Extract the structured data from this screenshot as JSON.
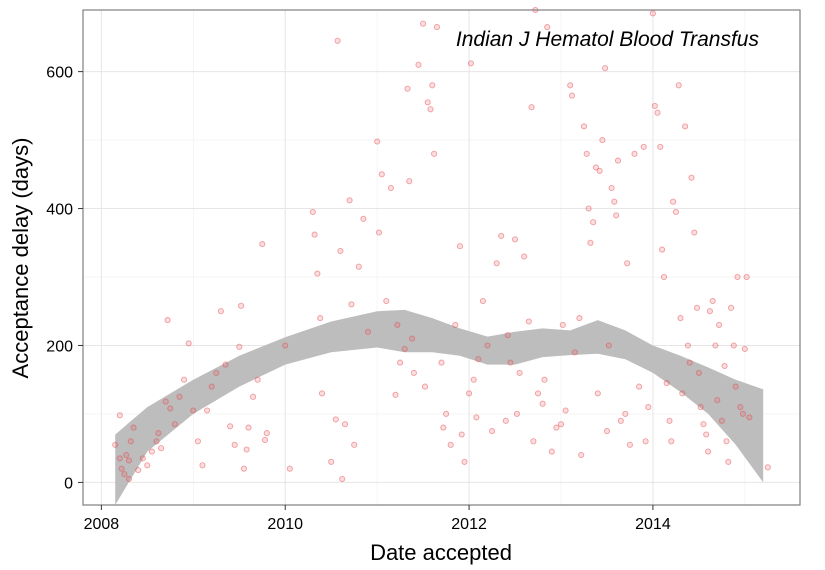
{
  "chart_data": {
    "type": "scatter",
    "title": "",
    "annotation": "Indian J Hematol Blood Transfus",
    "xlabel": "Date accepted",
    "ylabel": "Acceptance delay (days)",
    "xlim": [
      2007.8,
      2015.6
    ],
    "ylim": [
      -33,
      690
    ],
    "x_ticks": [
      2008,
      2010,
      2012,
      2014
    ],
    "x_tick_labels": [
      "2008",
      "2010",
      "2012",
      "2014"
    ],
    "y_ticks": [
      0,
      200,
      400,
      600
    ],
    "y_tick_labels": [
      "0",
      "200",
      "400",
      "600"
    ],
    "grid": true,
    "legend": "none",
    "colors": {
      "point": "#e8474c",
      "band": "#bdbdbd",
      "grid_major": "#e6e6e6",
      "grid_minor": "#f3f3f3",
      "frame": "#7f7f7f"
    },
    "band": {
      "x": [
        2008.15,
        2008.5,
        2009.0,
        2009.5,
        2010.0,
        2010.5,
        2011.0,
        2011.3,
        2011.6,
        2011.9,
        2012.2,
        2012.5,
        2012.8,
        2013.1,
        2013.4,
        2013.7,
        2014.0,
        2014.3,
        2014.6,
        2014.9,
        2015.2
      ],
      "upper": [
        70,
        110,
        150,
        185,
        212,
        235,
        250,
        252,
        240,
        225,
        213,
        220,
        225,
        222,
        237,
        222,
        200,
        185,
        168,
        150,
        136
      ],
      "lower": [
        -33,
        45,
        100,
        140,
        172,
        190,
        197,
        190,
        190,
        185,
        172,
        172,
        183,
        186,
        188,
        180,
        160,
        132,
        100,
        55,
        0
      ]
    },
    "points": [
      [
        2008.15,
        55
      ],
      [
        2008.2,
        98
      ],
      [
        2008.2,
        35
      ],
      [
        2008.22,
        20
      ],
      [
        2008.25,
        12
      ],
      [
        2008.27,
        40
      ],
      [
        2008.3,
        5
      ],
      [
        2008.3,
        32
      ],
      [
        2008.32,
        60
      ],
      [
        2008.35,
        80
      ],
      [
        2008.4,
        18
      ],
      [
        2008.45,
        35
      ],
      [
        2008.5,
        25
      ],
      [
        2008.55,
        45
      ],
      [
        2008.6,
        60
      ],
      [
        2008.62,
        72
      ],
      [
        2008.65,
        50
      ],
      [
        2008.7,
        118
      ],
      [
        2008.72,
        237
      ],
      [
        2008.75,
        108
      ],
      [
        2008.8,
        85
      ],
      [
        2008.85,
        125
      ],
      [
        2008.9,
        150
      ],
      [
        2008.95,
        203
      ],
      [
        2009.0,
        105
      ],
      [
        2009.05,
        60
      ],
      [
        2009.1,
        25
      ],
      [
        2009.15,
        105
      ],
      [
        2009.2,
        140
      ],
      [
        2009.25,
        160
      ],
      [
        2009.3,
        250
      ],
      [
        2009.35,
        172
      ],
      [
        2009.4,
        82
      ],
      [
        2009.45,
        55
      ],
      [
        2009.5,
        198
      ],
      [
        2009.52,
        258
      ],
      [
        2009.55,
        20
      ],
      [
        2009.58,
        48
      ],
      [
        2009.6,
        80
      ],
      [
        2009.65,
        125
      ],
      [
        2009.7,
        150
      ],
      [
        2009.75,
        348
      ],
      [
        2009.78,
        62
      ],
      [
        2009.8,
        72
      ],
      [
        2010.0,
        200
      ],
      [
        2010.05,
        20
      ],
      [
        2010.3,
        395
      ],
      [
        2010.32,
        362
      ],
      [
        2010.35,
        305
      ],
      [
        2010.38,
        240
      ],
      [
        2010.4,
        130
      ],
      [
        2010.5,
        30
      ],
      [
        2010.55,
        92
      ],
      [
        2010.57,
        645
      ],
      [
        2010.6,
        338
      ],
      [
        2010.62,
        5
      ],
      [
        2010.65,
        85
      ],
      [
        2010.7,
        412
      ],
      [
        2010.72,
        260
      ],
      [
        2010.75,
        55
      ],
      [
        2010.8,
        315
      ],
      [
        2010.85,
        385
      ],
      [
        2010.9,
        220
      ],
      [
        2011.0,
        498
      ],
      [
        2011.02,
        365
      ],
      [
        2011.05,
        450
      ],
      [
        2011.1,
        265
      ],
      [
        2011.15,
        430
      ],
      [
        2011.2,
        128
      ],
      [
        2011.22,
        230
      ],
      [
        2011.25,
        175
      ],
      [
        2011.3,
        195
      ],
      [
        2011.33,
        575
      ],
      [
        2011.35,
        440
      ],
      [
        2011.38,
        210
      ],
      [
        2011.4,
        160
      ],
      [
        2011.45,
        610
      ],
      [
        2011.5,
        670
      ],
      [
        2011.52,
        140
      ],
      [
        2011.55,
        555
      ],
      [
        2011.58,
        545
      ],
      [
        2011.6,
        580
      ],
      [
        2011.62,
        480
      ],
      [
        2011.65,
        665
      ],
      [
        2011.7,
        175
      ],
      [
        2011.72,
        80
      ],
      [
        2011.75,
        100
      ],
      [
        2011.8,
        55
      ],
      [
        2011.85,
        230
      ],
      [
        2011.9,
        345
      ],
      [
        2011.92,
        70
      ],
      [
        2011.95,
        30
      ],
      [
        2012.0,
        130
      ],
      [
        2012.02,
        612
      ],
      [
        2012.05,
        150
      ],
      [
        2012.08,
        95
      ],
      [
        2012.1,
        180
      ],
      [
        2012.15,
        265
      ],
      [
        2012.2,
        200
      ],
      [
        2012.25,
        75
      ],
      [
        2012.3,
        320
      ],
      [
        2012.35,
        360
      ],
      [
        2012.4,
        90
      ],
      [
        2012.42,
        215
      ],
      [
        2012.45,
        175
      ],
      [
        2012.5,
        355
      ],
      [
        2012.52,
        100
      ],
      [
        2012.55,
        160
      ],
      [
        2012.6,
        330
      ],
      [
        2012.65,
        235
      ],
      [
        2012.68,
        548
      ],
      [
        2012.7,
        60
      ],
      [
        2012.72,
        690
      ],
      [
        2012.75,
        130
      ],
      [
        2012.8,
        115
      ],
      [
        2012.82,
        150
      ],
      [
        2012.85,
        665
      ],
      [
        2012.9,
        45
      ],
      [
        2012.95,
        80
      ],
      [
        2013.0,
        85
      ],
      [
        2013.02,
        230
      ],
      [
        2013.05,
        105
      ],
      [
        2013.1,
        580
      ],
      [
        2013.12,
        565
      ],
      [
        2013.15,
        190
      ],
      [
        2013.2,
        240
      ],
      [
        2013.22,
        40
      ],
      [
        2013.25,
        520
      ],
      [
        2013.28,
        480
      ],
      [
        2013.3,
        400
      ],
      [
        2013.32,
        350
      ],
      [
        2013.35,
        380
      ],
      [
        2013.38,
        460
      ],
      [
        2013.4,
        130
      ],
      [
        2013.42,
        455
      ],
      [
        2013.45,
        500
      ],
      [
        2013.48,
        605
      ],
      [
        2013.5,
        75
      ],
      [
        2013.52,
        200
      ],
      [
        2013.55,
        430
      ],
      [
        2013.58,
        410
      ],
      [
        2013.6,
        390
      ],
      [
        2013.62,
        470
      ],
      [
        2013.65,
        90
      ],
      [
        2013.7,
        100
      ],
      [
        2013.72,
        320
      ],
      [
        2013.75,
        55
      ],
      [
        2013.8,
        480
      ],
      [
        2013.85,
        140
      ],
      [
        2013.9,
        490
      ],
      [
        2013.92,
        60
      ],
      [
        2013.95,
        110
      ],
      [
        2014.0,
        685
      ],
      [
        2014.02,
        550
      ],
      [
        2014.05,
        540
      ],
      [
        2014.08,
        490
      ],
      [
        2014.1,
        340
      ],
      [
        2014.12,
        300
      ],
      [
        2014.15,
        145
      ],
      [
        2014.18,
        90
      ],
      [
        2014.2,
        60
      ],
      [
        2014.22,
        410
      ],
      [
        2014.25,
        395
      ],
      [
        2014.28,
        580
      ],
      [
        2014.3,
        240
      ],
      [
        2014.32,
        130
      ],
      [
        2014.35,
        520
      ],
      [
        2014.38,
        200
      ],
      [
        2014.4,
        175
      ],
      [
        2014.42,
        445
      ],
      [
        2014.45,
        365
      ],
      [
        2014.48,
        255
      ],
      [
        2014.5,
        160
      ],
      [
        2014.52,
        110
      ],
      [
        2014.55,
        85
      ],
      [
        2014.58,
        70
      ],
      [
        2014.6,
        45
      ],
      [
        2014.62,
        250
      ],
      [
        2014.65,
        265
      ],
      [
        2014.68,
        200
      ],
      [
        2014.7,
        120
      ],
      [
        2014.72,
        230
      ],
      [
        2014.75,
        90
      ],
      [
        2014.78,
        170
      ],
      [
        2014.8,
        60
      ],
      [
        2014.82,
        30
      ],
      [
        2014.85,
        255
      ],
      [
        2014.88,
        200
      ],
      [
        2014.9,
        140
      ],
      [
        2014.92,
        300
      ],
      [
        2014.95,
        110
      ],
      [
        2014.98,
        100
      ],
      [
        2015.0,
        195
      ],
      [
        2015.02,
        300
      ],
      [
        2015.05,
        95
      ],
      [
        2015.25,
        22
      ]
    ]
  }
}
